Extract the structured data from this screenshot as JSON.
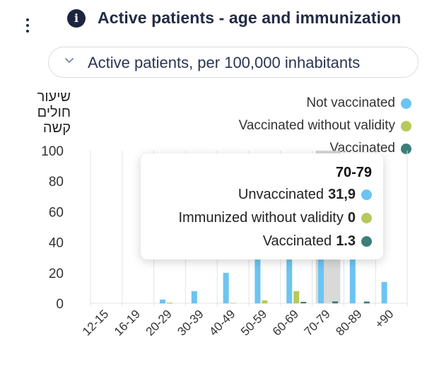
{
  "header": {
    "title": "Active patients - age and immunization",
    "menu_icon": "kebab-menu-icon",
    "info_icon": "info-icon"
  },
  "selector": {
    "label": "Active patients, per 100,000 inhabitants",
    "icon": "chevron-down-icon"
  },
  "colors": {
    "not_vaccinated": "#6cc4f2",
    "vaccinated_without_validity": "#b7c95a",
    "vaccinated": "#3b7f78",
    "highlight": "#c7c7c7"
  },
  "chart_data": {
    "type": "bar",
    "ylabel": "שיעור\nחולים\nקשה",
    "ylim": [
      0,
      100
    ],
    "yticks": [
      0,
      20,
      40,
      60,
      80,
      100
    ],
    "grid": true,
    "legend_position": "top-right",
    "categories": [
      "12-15",
      "16-19",
      "20-29",
      "30-39",
      "40-49",
      "50-59",
      "60-69",
      "70-79",
      "80-89",
      "+90"
    ],
    "series": [
      {
        "name": "Not vaccinated",
        "color": "#6cc4f2",
        "values": [
          0,
          0,
          2.5,
          8,
          20,
          45,
          48,
          31.9,
          35,
          14
        ]
      },
      {
        "name": "Vaccinated without validity",
        "color": "#b7c95a",
        "values": [
          0,
          0,
          0.5,
          0,
          0.3,
          2,
          8,
          0,
          0,
          0
        ]
      },
      {
        "name": "Vaccinated",
        "color": "#3b7f78",
        "values": [
          0,
          0,
          0,
          0,
          0,
          0,
          1,
          1.3,
          1.2,
          0
        ]
      }
    ],
    "highlighted_category": "70-79",
    "tooltip": {
      "title": "70-79",
      "rows": [
        {
          "label": "Unvaccinated",
          "value": "31,9",
          "color": "#6cc4f2"
        },
        {
          "label": "Immunized without validity",
          "value": "0",
          "color": "#b7c95a"
        },
        {
          "label": "Vaccinated",
          "value": "1.3",
          "color": "#3b7f78"
        }
      ]
    }
  }
}
